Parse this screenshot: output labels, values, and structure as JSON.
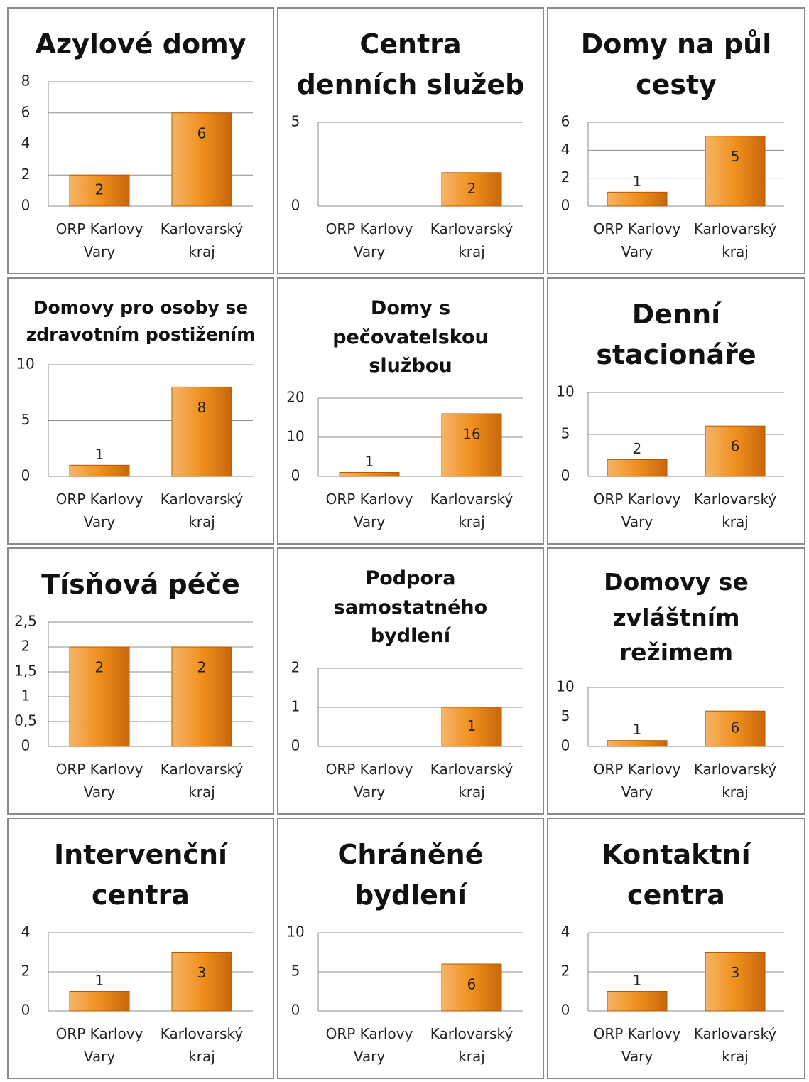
{
  "chart_data": [
    {
      "type": "bar",
      "title": "Azylové domy",
      "categories": [
        "ORP Karlovy Vary",
        "Karlovarský kraj"
      ],
      "values": [
        2,
        6
      ],
      "color": "#f0901e",
      "ylim": [
        0,
        8
      ],
      "yticks": [
        0,
        2,
        4,
        6,
        8
      ],
      "grid": true
    },
    {
      "type": "bar",
      "title": "Centra denních služeb",
      "categories": [
        "ORP Karlovy Vary",
        "Karlovarský kraj"
      ],
      "values": [
        null,
        2
      ],
      "color": "#f0901e",
      "ylim": [
        0,
        5
      ],
      "yticks": [
        0,
        5
      ],
      "grid": true
    },
    {
      "type": "bar",
      "title": "Domy na půl cesty",
      "categories": [
        "ORP Karlovy Vary",
        "Karlovarský kraj"
      ],
      "values": [
        1,
        5
      ],
      "color": "#f0901e",
      "ylim": [
        0,
        6
      ],
      "yticks": [
        0,
        2,
        4,
        6
      ],
      "grid": true
    },
    {
      "type": "bar",
      "title": "Domovy pro osoby se zdravotním postižením",
      "categories": [
        "ORP Karlovy Vary",
        "Karlovarský kraj"
      ],
      "values": [
        1,
        8
      ],
      "color": "#f0901e",
      "ylim": [
        0,
        10
      ],
      "yticks": [
        0,
        5,
        10
      ],
      "grid": true
    },
    {
      "type": "bar",
      "title": "Domy s pečovatelskou službou",
      "categories": [
        "ORP Karlovy Vary",
        "Karlovarský kraj"
      ],
      "values": [
        1,
        16
      ],
      "color": "#f0901e",
      "ylim": [
        0,
        20
      ],
      "yticks": [
        0,
        10,
        20
      ],
      "grid": true
    },
    {
      "type": "bar",
      "title": "Denní stacionáře",
      "categories": [
        "ORP Karlovy Vary",
        "Karlovarský kraj"
      ],
      "values": [
        2,
        6
      ],
      "color": "#f0901e",
      "ylim": [
        0,
        10
      ],
      "yticks": [
        0,
        5,
        10
      ],
      "grid": true
    },
    {
      "type": "bar",
      "title": "Tísňová péče",
      "categories": [
        "ORP Karlovy Vary",
        "Karlovarský kraj"
      ],
      "values": [
        2,
        2
      ],
      "color": "#f0901e",
      "ylim": [
        0,
        2.5
      ],
      "yticks": [
        0,
        {
          "value": 0.5,
          "label": "0,5"
        },
        1,
        {
          "value": 1.5,
          "label": "1,5"
        },
        2,
        {
          "value": 2.5,
          "label": "2,5"
        }
      ],
      "grid": true
    },
    {
      "type": "bar",
      "title": "Podpora samostatného bydlení",
      "categories": [
        "ORP Karlovy Vary",
        "Karlovarský kraj"
      ],
      "values": [
        null,
        1
      ],
      "color": "#f0901e",
      "ylim": [
        0,
        2
      ],
      "yticks": [
        0,
        1,
        2
      ],
      "grid": true
    },
    {
      "type": "bar",
      "title": "Domovy se zvláštním režimem",
      "categories": [
        "ORP Karlovy Vary",
        "Karlovarský kraj"
      ],
      "values": [
        1,
        6
      ],
      "color": "#f0901e",
      "ylim": [
        0,
        10
      ],
      "yticks": [
        0,
        5,
        10
      ],
      "grid": true
    },
    {
      "type": "bar",
      "title": "Intervenční centra",
      "categories": [
        "ORP Karlovy Vary",
        "Karlovarský kraj"
      ],
      "values": [
        1,
        3
      ],
      "color": "#f0901e",
      "ylim": [
        0,
        4
      ],
      "yticks": [
        0,
        2,
        4
      ],
      "grid": true
    },
    {
      "type": "bar",
      "title": "Chráněné bydlení",
      "categories": [
        "ORP Karlovy Vary",
        "Karlovarský kraj"
      ],
      "values": [
        null,
        6
      ],
      "color": "#f0901e",
      "ylim": [
        0,
        10
      ],
      "yticks": [
        0,
        5,
        10
      ],
      "grid": true
    },
    {
      "type": "bar",
      "title": "Kontaktní centra",
      "categories": [
        "ORP Karlovy Vary",
        "Karlovarský kraj"
      ],
      "values": [
        1,
        3
      ],
      "color": "#f0901e",
      "ylim": [
        0,
        4
      ],
      "yticks": [
        0,
        2,
        4
      ],
      "grid": true
    }
  ]
}
